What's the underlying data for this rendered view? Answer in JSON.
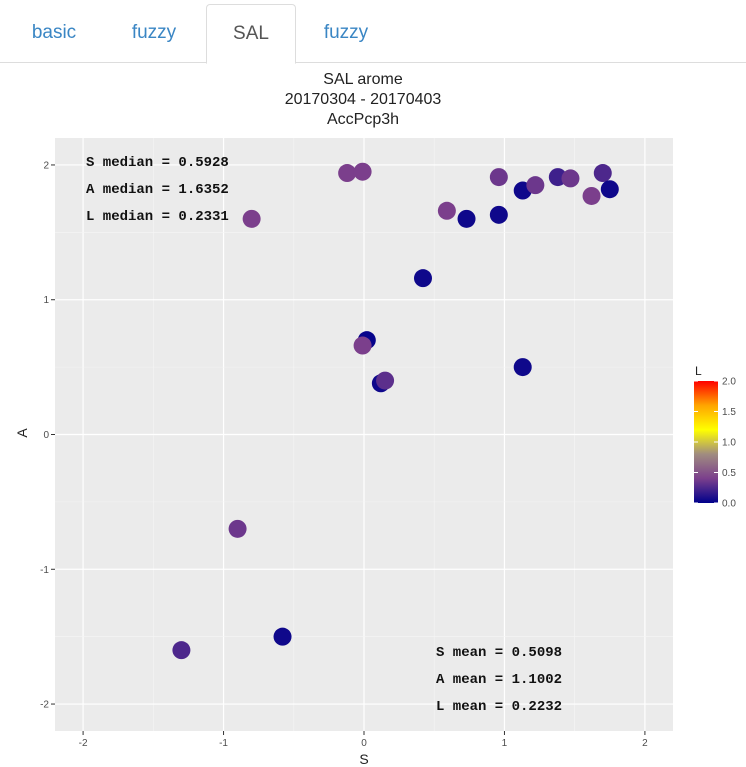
{
  "tabs": [
    {
      "label": "basic",
      "active": false
    },
    {
      "label": "fuzzy",
      "active": false
    },
    {
      "label": "SAL",
      "active": true
    },
    {
      "label": "fuzzy",
      "active": false
    }
  ],
  "colors": {
    "tab_link": "#3a86c4",
    "panel_bg": "#ebebeb",
    "grid": "#ffffff"
  },
  "chart_data": {
    "type": "scatter",
    "title": [
      "SAL arome",
      "20170304 - 20170403",
      "AccPcp3h"
    ],
    "xlabel": "S",
    "ylabel": "A",
    "xlim": [
      -2.2,
      2.2
    ],
    "ylim": [
      -2.2,
      2.2
    ],
    "xticks": [
      -2,
      -1,
      0,
      1,
      2
    ],
    "yticks": [
      -2,
      -1,
      0,
      1,
      2
    ],
    "grid": true,
    "color_legend": {
      "title": "L",
      "min": 0.0,
      "max": 2.0,
      "ticks": [
        "0.0",
        "0.5",
        "1.0",
        "1.5",
        "2.0"
      ],
      "stops": [
        "#00008b",
        "#7b3f8c",
        "#a08c80",
        "#ffff00",
        "#ffa500",
        "#ff0000"
      ],
      "placement": "right"
    },
    "points": [
      {
        "S": -1.3,
        "A": -1.6,
        "L": 0.25
      },
      {
        "S": -0.58,
        "A": -1.5,
        "L": 0.05
      },
      {
        "S": -0.9,
        "A": -0.7,
        "L": 0.35
      },
      {
        "S": -0.8,
        "A": 1.6,
        "L": 0.4
      },
      {
        "S": -0.12,
        "A": 1.94,
        "L": 0.4
      },
      {
        "S": -0.01,
        "A": 1.95,
        "L": 0.4
      },
      {
        "S": 0.02,
        "A": 0.7,
        "L": 0.02
      },
      {
        "S": -0.01,
        "A": 0.66,
        "L": 0.4
      },
      {
        "S": 0.12,
        "A": 0.38,
        "L": 0.05
      },
      {
        "S": 0.15,
        "A": 0.4,
        "L": 0.3
      },
      {
        "S": 0.42,
        "A": 1.16,
        "L": 0.05
      },
      {
        "S": 0.59,
        "A": 1.66,
        "L": 0.4
      },
      {
        "S": 0.73,
        "A": 1.6,
        "L": 0.05
      },
      {
        "S": 0.96,
        "A": 1.63,
        "L": 0.05
      },
      {
        "S": 0.96,
        "A": 1.91,
        "L": 0.35
      },
      {
        "S": 1.13,
        "A": 1.81,
        "L": 0.05
      },
      {
        "S": 1.13,
        "A": 0.5,
        "L": 0.05
      },
      {
        "S": 1.22,
        "A": 1.85,
        "L": 0.35
      },
      {
        "S": 1.38,
        "A": 1.91,
        "L": 0.2
      },
      {
        "S": 1.47,
        "A": 1.9,
        "L": 0.35
      },
      {
        "S": 1.62,
        "A": 1.77,
        "L": 0.4
      },
      {
        "S": 1.7,
        "A": 1.94,
        "L": 0.25
      },
      {
        "S": 1.75,
        "A": 1.82,
        "L": 0.05
      }
    ],
    "annotations": {
      "median": [
        "S median = 0.5928",
        "A median = 1.6352",
        "L median = 0.2331"
      ],
      "mean": [
        "S mean = 0.5098",
        "A mean = 1.1002",
        "L mean = 0.2232"
      ]
    }
  }
}
